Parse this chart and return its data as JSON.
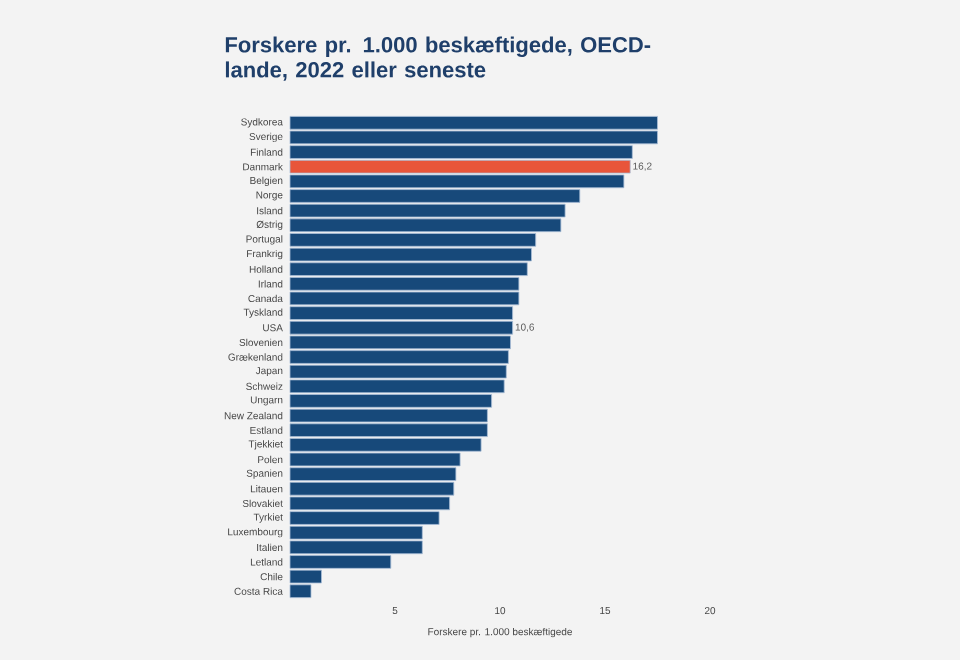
{
  "chart_data": {
    "type": "bar",
    "orientation": "horizontal",
    "title": "Forskere pr. 1.000 beskæftigede, OECD-lande, 2022 eller seneste",
    "xlabel": "Forskere pr. 1.000 beskæftigede",
    "categories": [
      "Sydkorea",
      "Sverige",
      "Finland",
      "Danmark",
      "Belgien",
      "Norge",
      "Island",
      "Østrig",
      "Portugal",
      "Frankrig",
      "Holland",
      "Irland",
      "Canada",
      "Tyskland",
      "USA",
      "Slovenien",
      "Grækenland",
      "Japan",
      "Schweiz",
      "Ungarn",
      "New Zealand",
      "Estland",
      "Tjekkiet",
      "Polen",
      "Spanien",
      "Litauen",
      "Slovakiet",
      "Tyrkiet",
      "Luxembourg",
      "Italien",
      "Letland",
      "Chile",
      "Costa Rica"
    ],
    "values": [
      17.5,
      17.5,
      16.3,
      16.2,
      15.9,
      13.8,
      13.1,
      12.9,
      11.7,
      11.5,
      11.3,
      10.9,
      10.9,
      10.6,
      10.6,
      10.5,
      10.4,
      10.3,
      10.2,
      9.6,
      9.4,
      9.4,
      9.1,
      8.1,
      7.9,
      7.8,
      7.6,
      7.1,
      6.3,
      6.3,
      4.8,
      1.5,
      1.0
    ],
    "value_labels": [
      null,
      null,
      null,
      "16,2",
      null,
      null,
      null,
      null,
      null,
      null,
      null,
      null,
      null,
      null,
      "10,6",
      null,
      null,
      null,
      null,
      null,
      null,
      null,
      null,
      null,
      null,
      null,
      null,
      null,
      null,
      null,
      null,
      null,
      null
    ],
    "colors": [
      "#17497a",
      "#17497a",
      "#17497a",
      "#e8553a",
      "#17497a",
      "#17497a",
      "#17497a",
      "#17497a",
      "#17497a",
      "#17497a",
      "#17497a",
      "#17497a",
      "#17497a",
      "#17497a",
      "#17497a",
      "#17497a",
      "#17497a",
      "#17497a",
      "#17497a",
      "#17497a",
      "#17497a",
      "#17497a",
      "#17497a",
      "#17497a",
      "#17497a",
      "#17497a",
      "#17497a",
      "#17497a",
      "#17497a",
      "#17497a",
      "#17497a",
      "#17497a",
      "#17497a"
    ],
    "xlim": [
      0,
      20
    ],
    "xticks": [
      5,
      10,
      15,
      20
    ]
  }
}
